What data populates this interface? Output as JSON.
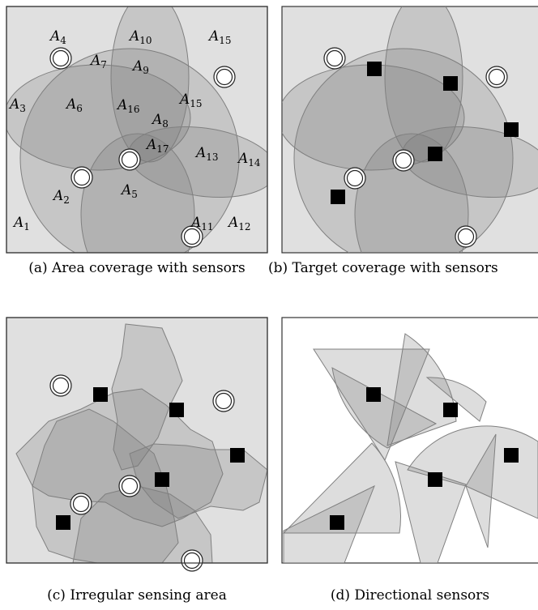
{
  "panels": [
    {
      "caption": "(a) Area coverage with sensors",
      "labels": [
        {
          "base": "A",
          "sub": "4"
        },
        {
          "base": "A",
          "sub": "10"
        },
        {
          "base": "A",
          "sub": "15"
        },
        {
          "base": "A",
          "sub": "7"
        },
        {
          "base": "A",
          "sub": "9"
        },
        {
          "base": "A",
          "sub": "3"
        },
        {
          "base": "A",
          "sub": "6"
        },
        {
          "base": "A",
          "sub": "16"
        },
        {
          "base": "A",
          "sub": "15"
        },
        {
          "base": "A",
          "sub": "8"
        },
        {
          "base": "A",
          "sub": "17"
        },
        {
          "base": "A",
          "sub": "13"
        },
        {
          "base": "A",
          "sub": "14"
        },
        {
          "base": "A",
          "sub": "2"
        },
        {
          "base": "A",
          "sub": "5"
        },
        {
          "base": "A",
          "sub": "1"
        },
        {
          "base": "A",
          "sub": "11"
        },
        {
          "base": "A",
          "sub": "12"
        }
      ]
    },
    {
      "caption": "(b) Target coverage with sensors"
    },
    {
      "caption": "(c) Irregular sensing area"
    },
    {
      "caption": "(d) Directional sensors"
    }
  ]
}
